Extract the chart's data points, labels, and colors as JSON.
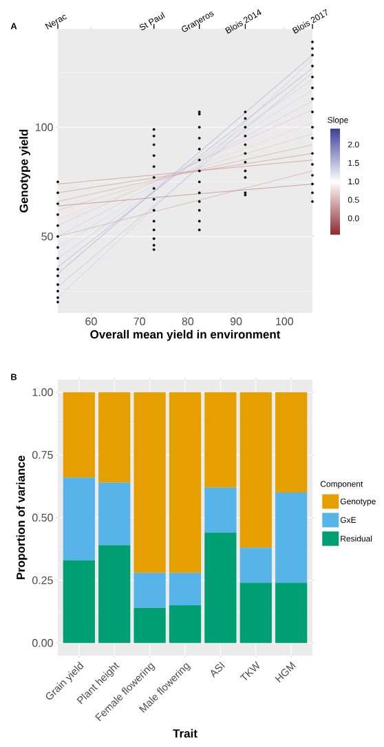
{
  "chart_data": [
    {
      "type": "line",
      "title": "A",
      "xlabel": "Overall mean yield in environment",
      "ylabel": "Genotype yield",
      "xlim": [
        53.1,
        105.8
      ],
      "xticks": [
        60,
        70,
        80,
        90,
        100
      ],
      "ylim": [
        15,
        145
      ],
      "yticks": [
        50,
        100
      ],
      "annotations": [
        "Nerac",
        "St Paul",
        "Graneros",
        "Blois 2014",
        "Blois 2017"
      ],
      "grid": "y",
      "clabel": "Slope",
      "clim": [
        -0.45,
        2.44
      ],
      "cticks": [
        {
          "value": 0,
          "label": "0.0"
        },
        {
          "value": 0.5,
          "label": "0.5"
        },
        {
          "value": 1,
          "label": "1.0"
        },
        {
          "value": 1.5,
          "label": "1.5"
        },
        {
          "value": 2,
          "label": "2.0"
        }
      ],
      "series": [
        {
          "type": "line",
          "color": "#c4c4e6",
          "x": [
            53.1,
            105.8
          ],
          "values": [
            22,
            131
          ]
        },
        {
          "type": "line",
          "color": "#b8b8e0",
          "x": [
            53.1,
            105.8
          ],
          "values": [
            27,
            125
          ]
        },
        {
          "type": "line",
          "color": "#9a9ad0",
          "x": [
            53.1,
            105.8
          ],
          "values": [
            33,
            133
          ]
        },
        {
          "type": "line",
          "color": "#a8a8d8",
          "x": [
            53.1,
            105.8
          ],
          "values": [
            36,
            127
          ]
        },
        {
          "type": "line",
          "color": "#c8c8ea",
          "x": [
            53.1,
            105.8
          ],
          "values": [
            40,
            122
          ]
        },
        {
          "type": "line",
          "color": "#d6d6ee",
          "x": [
            53.1,
            105.8
          ],
          "values": [
            45,
            117
          ]
        },
        {
          "type": "line",
          "color": "#cdc9ea",
          "x": [
            53.1,
            105.8
          ],
          "values": [
            50,
            112
          ]
        },
        {
          "type": "line",
          "color": "#dcc4c4",
          "x": [
            53.1,
            105.8
          ],
          "values": [
            55,
            108
          ]
        },
        {
          "type": "line",
          "color": "#ecd6d4",
          "x": [
            53.1,
            105.8
          ],
          "values": [
            58,
            102
          ]
        },
        {
          "type": "line",
          "color": "#e3c3c0",
          "x": [
            53.1,
            105.8
          ],
          "values": [
            62,
            97
          ]
        },
        {
          "type": "line",
          "color": "#d9aca8",
          "x": [
            53.1,
            105.8
          ],
          "values": [
            66,
            92
          ]
        },
        {
          "type": "line",
          "color": "#cf9a96",
          "x": [
            53.1,
            105.8
          ],
          "values": [
            70,
            88
          ]
        },
        {
          "type": "line",
          "color": "#c98c88",
          "x": [
            53.1,
            105.8
          ],
          "values": [
            74,
            85
          ]
        },
        {
          "type": "line",
          "color": "#d6a6a2",
          "x": [
            53.1,
            105.8
          ],
          "values": [
            50,
            80
          ]
        },
        {
          "type": "line",
          "color": "#c27f7a",
          "x": [
            53.1,
            105.8
          ],
          "values": [
            64,
            74
          ]
        },
        {
          "type": "scatter",
          "color": "#000000",
          "x": [
            53.1,
            53.1,
            53.1,
            53.1,
            53.1,
            53.1,
            53.1,
            53.1,
            53.1,
            53.1,
            53.1,
            53.1,
            53.1,
            53.1,
            73.0,
            73.0,
            73.0,
            73.0,
            73.0,
            73.0,
            73.0,
            73.0,
            73.0,
            73.0,
            73.0,
            73.0,
            73.0,
            73.0,
            82.4,
            82.4,
            82.4,
            82.4,
            82.4,
            82.4,
            82.4,
            82.4,
            82.4,
            82.4,
            82.4,
            82.4,
            82.4,
            91.9,
            91.9,
            91.9,
            91.9,
            91.9,
            91.9,
            91.9,
            91.9,
            91.9,
            91.9,
            91.9,
            105.8,
            105.8,
            105.8,
            105.8,
            105.8,
            105.8,
            105.8,
            105.8,
            105.8,
            105.8,
            105.8,
            105.8,
            105.8,
            105.8,
            105.8,
            105.8
          ],
          "values": [
            20,
            22,
            25,
            28,
            32,
            35,
            40,
            45,
            50,
            55,
            60,
            65,
            70,
            75,
            44,
            46,
            49,
            53,
            57,
            62,
            67,
            72,
            77,
            82,
            87,
            92,
            96,
            99,
            53,
            57,
            62,
            66,
            70,
            75,
            80,
            85,
            90,
            95,
            100,
            106,
            107,
            69,
            70,
            77,
            80,
            84,
            88,
            92,
            96,
            100,
            104,
            107,
            66,
            70,
            74,
            78,
            83,
            88,
            95,
            100,
            107,
            113,
            118,
            123,
            128,
            133,
            136,
            139
          ]
        }
      ]
    },
    {
      "type": "bar",
      "title": "B",
      "stacked": true,
      "xlabel": "Trait",
      "ylabel": "Proportion of variance",
      "categories": [
        "Grain yield",
        "Plant height",
        "Female flowering",
        "Male flowering",
        "ASI",
        "TKW",
        "HGM"
      ],
      "ylim": [
        -0.05,
        1.05
      ],
      "yticks": [
        {
          "value": 0,
          "label": "0.00"
        },
        {
          "value": 0.25,
          "label": "0.25"
        },
        {
          "value": 0.5,
          "label": "0.50"
        },
        {
          "value": 0.75,
          "label": "0.75"
        },
        {
          "value": 1,
          "label": "1.00"
        }
      ],
      "grid": true,
      "legend": "right",
      "legend_title": "Component",
      "series": [
        {
          "name": "Residual",
          "color": "#009e73",
          "values": [
            0.33,
            0.39,
            0.14,
            0.15,
            0.44,
            0.24,
            0.24
          ]
        },
        {
          "name": "GxE",
          "color": "#56b4e9",
          "values": [
            0.33,
            0.25,
            0.14,
            0.13,
            0.18,
            0.14,
            0.36
          ]
        },
        {
          "name": "Genotype",
          "color": "#e69f00",
          "values": [
            0.34,
            0.36,
            0.72,
            0.72,
            0.38,
            0.62,
            0.4
          ]
        }
      ]
    }
  ]
}
